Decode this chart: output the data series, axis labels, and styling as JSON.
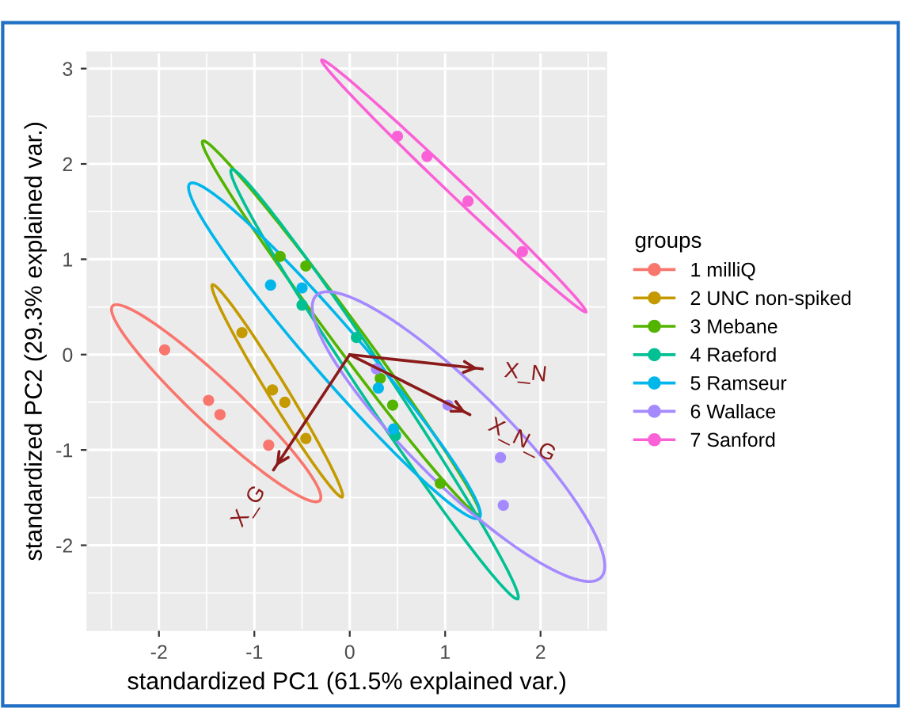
{
  "chart_data": {
    "type": "scatter",
    "xlabel": "standardized PC1 (61.5% explained var.)",
    "ylabel": "standardized PC2 (29.3% explained var.)",
    "legend_title": "groups",
    "legend": "right",
    "grid": true,
    "marker": "circle",
    "xlim": [
      -2.75,
      2.69
    ],
    "ylim": [
      -2.89,
      3.17
    ],
    "xticks": [
      -2,
      -1,
      0,
      1,
      2
    ],
    "yticks": [
      -2,
      -1,
      0,
      1,
      2,
      3
    ],
    "series": [
      {
        "name": "1 milliQ",
        "color": "#f8766d",
        "x": [
          -1.94,
          -1.48,
          -1.36,
          -0.85
        ],
        "values": [
          0.05,
          -0.48,
          -0.63,
          -0.95
        ]
      },
      {
        "name": "2 UNC non-spiked",
        "color": "#c49a00",
        "x": [
          -1.13,
          -0.81,
          -0.68,
          -0.46
        ],
        "values": [
          0.23,
          -0.37,
          -0.5,
          -0.88
        ]
      },
      {
        "name": "3 Mebane",
        "color": "#53b400",
        "x": [
          -0.73,
          -0.46,
          0.32,
          0.45,
          0.95
        ],
        "values": [
          1.03,
          0.93,
          -0.25,
          -0.53,
          -1.35
        ]
      },
      {
        "name": "4 Raeford",
        "color": "#00c094",
        "x": [
          -0.5,
          0.07,
          0.48
        ],
        "values": [
          0.52,
          0.18,
          -0.85
        ]
      },
      {
        "name": "5 Ramseur",
        "color": "#00b6eb",
        "x": [
          -0.83,
          -0.5,
          0.3,
          0.46
        ],
        "values": [
          0.73,
          0.7,
          -0.35,
          -0.78
        ]
      },
      {
        "name": "6 Wallace",
        "color": "#a58aff",
        "x": [
          0.28,
          1.03,
          1.58,
          1.61
        ],
        "values": [
          -0.15,
          -0.53,
          -1.08,
          -1.58
        ]
      },
      {
        "name": "7 Sanford",
        "color": "#fb61d7",
        "x": [
          0.5,
          0.81,
          1.24,
          1.81
        ],
        "values": [
          2.29,
          2.08,
          1.61,
          1.08
        ]
      },
      {
        "type": "line",
        "marker": "none",
        "color": "#8b1a1a",
        "x": [
          0,
          1.39
        ],
        "values": [
          0,
          -0.15
        ]
      },
      {
        "type": "line",
        "marker": "none",
        "color": "#8b1a1a",
        "x": [
          0,
          1.26
        ],
        "values": [
          0,
          -0.63
        ]
      },
      {
        "type": "line",
        "marker": "none",
        "color": "#8b1a1a",
        "x": [
          0,
          -0.8
        ],
        "values": [
          0,
          -1.21
        ]
      }
    ],
    "annotations": [
      "X_N",
      "X_N_G",
      "X_G"
    ]
  }
}
